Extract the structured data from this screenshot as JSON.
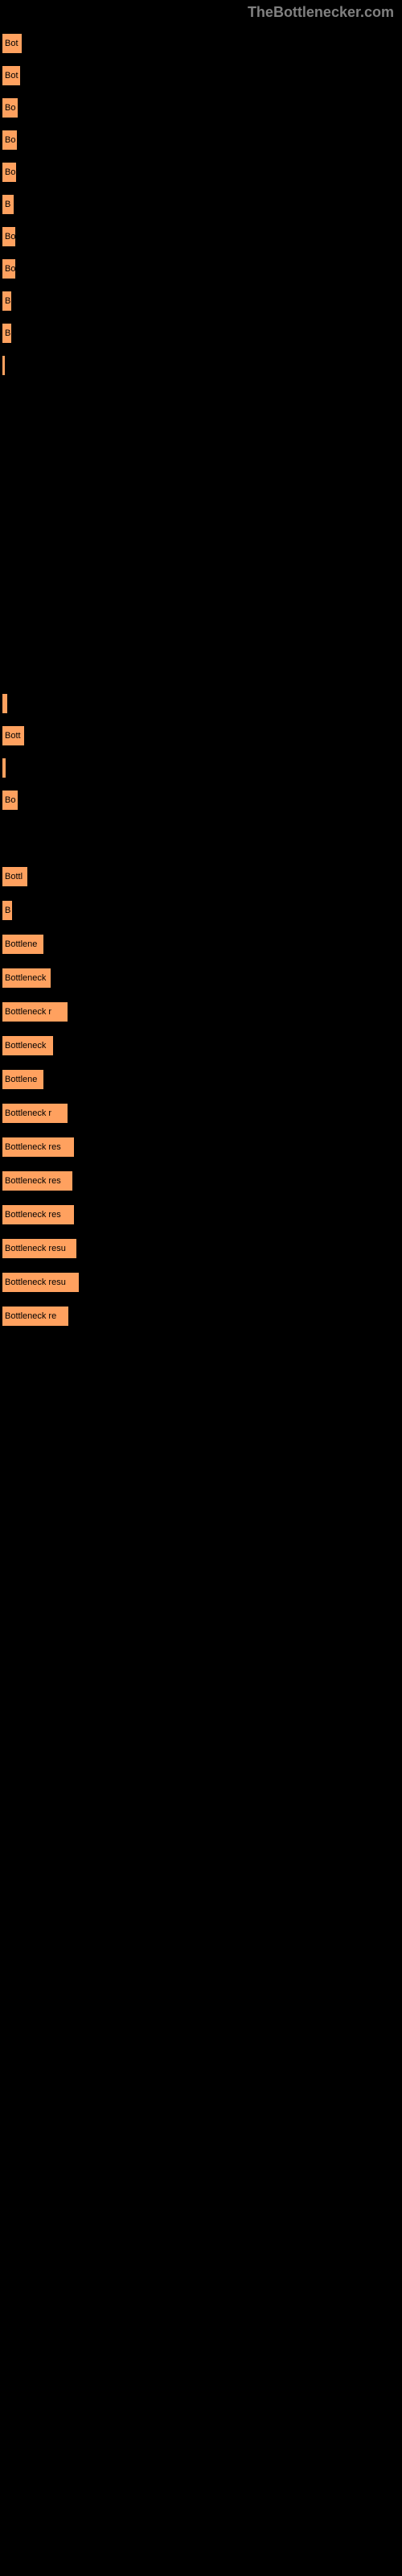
{
  "header": {
    "brand": "TheBottlenecker.com"
  },
  "chart": {
    "bar_color": "#ffa15f",
    "bar_border": "#000000",
    "background_color": "#000000",
    "text_color": "#000000",
    "bars": [
      {
        "label": "Bot",
        "width": 26
      },
      {
        "label": "Bot",
        "width": 24
      },
      {
        "label": "Bo",
        "width": 21
      },
      {
        "label": "Bo",
        "width": 20
      },
      {
        "label": "Bo",
        "width": 19
      },
      {
        "label": "B",
        "width": 16
      },
      {
        "label": "Bo",
        "width": 18
      },
      {
        "label": "Bo",
        "width": 18
      },
      {
        "label": "B",
        "width": 13
      },
      {
        "label": "B",
        "width": 13
      },
      {
        "label": "",
        "width": 5
      }
    ],
    "bars2": [
      {
        "label": "",
        "width": 8
      },
      {
        "label": "Bott",
        "width": 29
      },
      {
        "label": "",
        "width": 6
      },
      {
        "label": "Bo",
        "width": 21
      }
    ],
    "bars3": [
      {
        "label": "Bottl",
        "width": 33
      },
      {
        "label": "B",
        "width": 14
      },
      {
        "label": "Bottlene",
        "width": 53
      },
      {
        "label": "Bottleneck",
        "width": 62
      },
      {
        "label": "Bottleneck r",
        "width": 83
      },
      {
        "label": "Bottleneck",
        "width": 65
      },
      {
        "label": "Bottlene",
        "width": 53
      },
      {
        "label": "Bottleneck r",
        "width": 83
      },
      {
        "label": "Bottleneck res",
        "width": 91
      },
      {
        "label": "Bottleneck res",
        "width": 89
      },
      {
        "label": "Bottleneck res",
        "width": 91
      },
      {
        "label": "Bottleneck resu",
        "width": 94
      },
      {
        "label": "Bottleneck resu",
        "width": 97
      },
      {
        "label": "Bottleneck re",
        "width": 84
      }
    ]
  }
}
